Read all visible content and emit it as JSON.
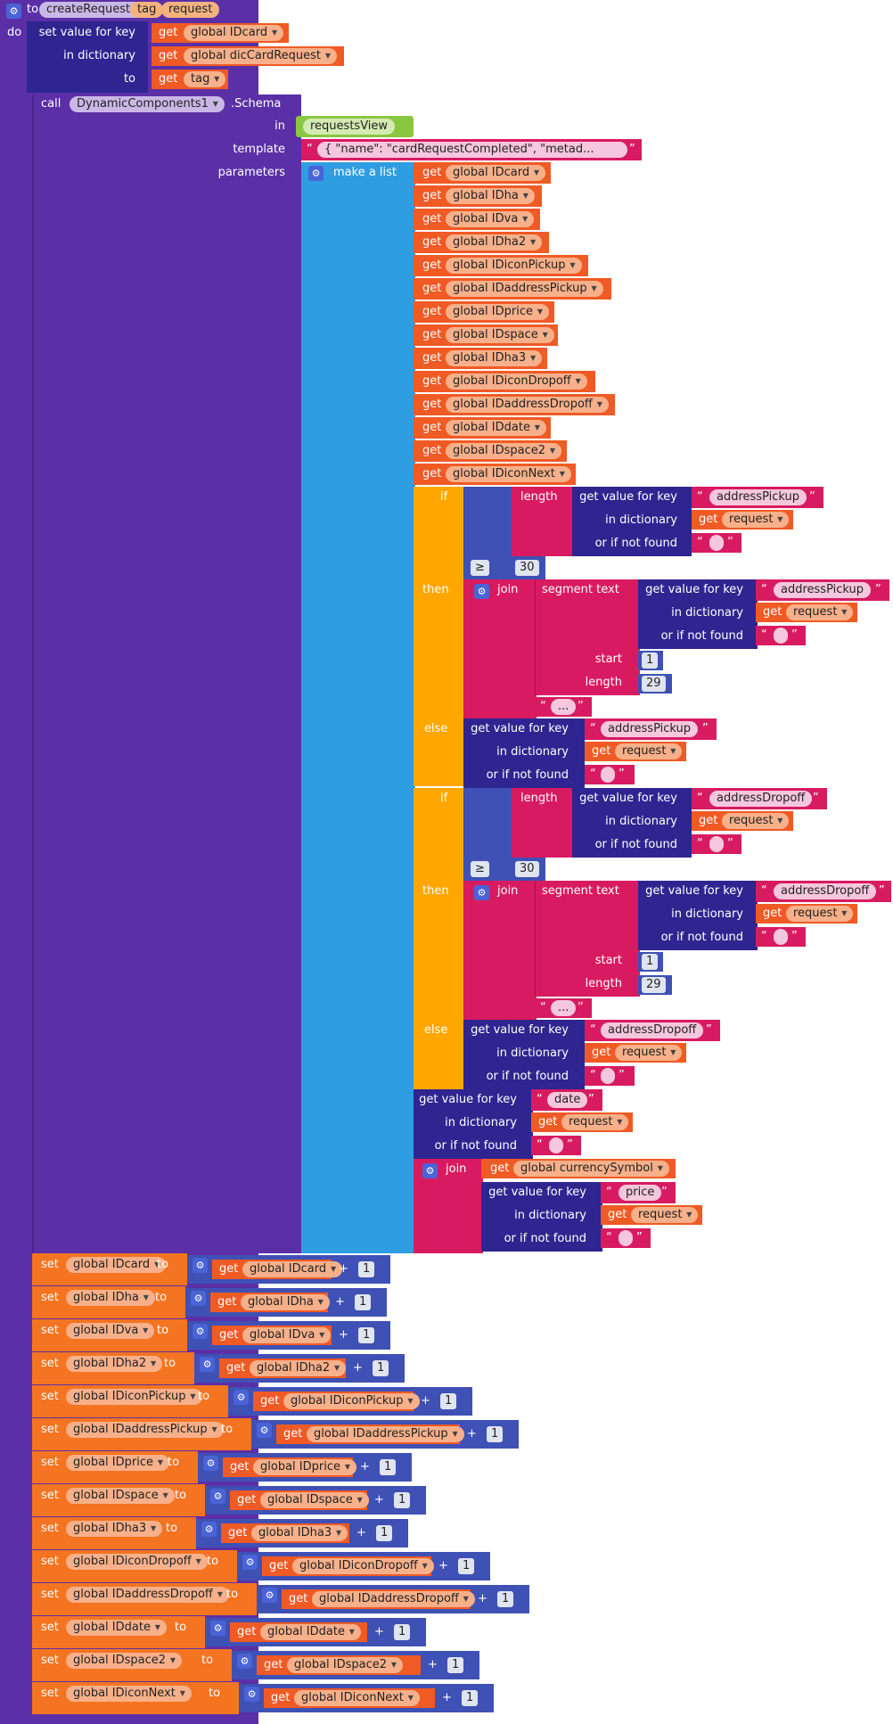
{
  "procedure": {
    "to": "to",
    "name": "createRequests",
    "params": [
      "tag",
      "request"
    ],
    "do": "do"
  },
  "set_dict": {
    "label": "set value for key",
    "key_get": "get",
    "key_var": "global IDcard",
    "in_dict": "in dictionary",
    "dict_var": "global dicCardRequest",
    "to": "to",
    "val_var": "tag"
  },
  "call": {
    "call": "call",
    "component": "DynamicComponents1",
    "method": ".Schema",
    "in": "in",
    "in_val": "requestsView",
    "template": "template",
    "template_val": "{     \"name\": \"cardRequestCompleted\",     \"metad...",
    "parameters": "parameters",
    "make_list": "make a list"
  },
  "list_items": [
    "global IDcard",
    "global IDha",
    "global IDva",
    "global IDha2",
    "global IDiconPickup",
    "global IDaddressPickup",
    "global IDprice",
    "global IDspace",
    "global IDha3",
    "global IDiconDropoff",
    "global IDaddressDropoff",
    "global IDdate",
    "global IDspace2",
    "global IDiconNext"
  ],
  "kw": {
    "get": "get",
    "if": "if",
    "then": "then",
    "else": "else",
    "length": "length",
    "join": "join",
    "segment": "segment  text",
    "get_value": "get value for key",
    "in_dictionary": "in dictionary",
    "or_if_not_found": "or if not found",
    "start": "start",
    "length2": "length",
    "gte": "≥",
    "thirty": "30",
    "one": "1",
    "twentynine": "29",
    "ellipsis": "...",
    "request": "request",
    "plus": "+",
    "set": "set",
    "to": "to"
  },
  "keys": {
    "pickup": "addressPickup",
    "dropoff": "addressDropoff",
    "date": "date",
    "price": "price"
  },
  "currency": "global currencySymbol",
  "set_lines": [
    {
      "var": "global IDcard"
    },
    {
      "var": "global IDha"
    },
    {
      "var": "global IDva"
    },
    {
      "var": "global IDha2"
    },
    {
      "var": "global IDiconPickup"
    },
    {
      "var": "global IDaddressPickup"
    },
    {
      "var": "global IDprice"
    },
    {
      "var": "global IDspace"
    },
    {
      "var": "global IDha3"
    },
    {
      "var": "global IDiconDropoff"
    },
    {
      "var": "global IDaddressDropoff"
    },
    {
      "var": "global IDdate"
    },
    {
      "var": "global IDspace2"
    },
    {
      "var": "global IDiconNext"
    }
  ],
  "colors": {
    "procedure": "#5b30a6",
    "dictionary": "#2e2590",
    "variable": "#f05a24",
    "list": "#2f9de2",
    "text": "#d81b60",
    "control": "#ffa700",
    "math": "#3f51b5",
    "component": "#8ac63f"
  }
}
